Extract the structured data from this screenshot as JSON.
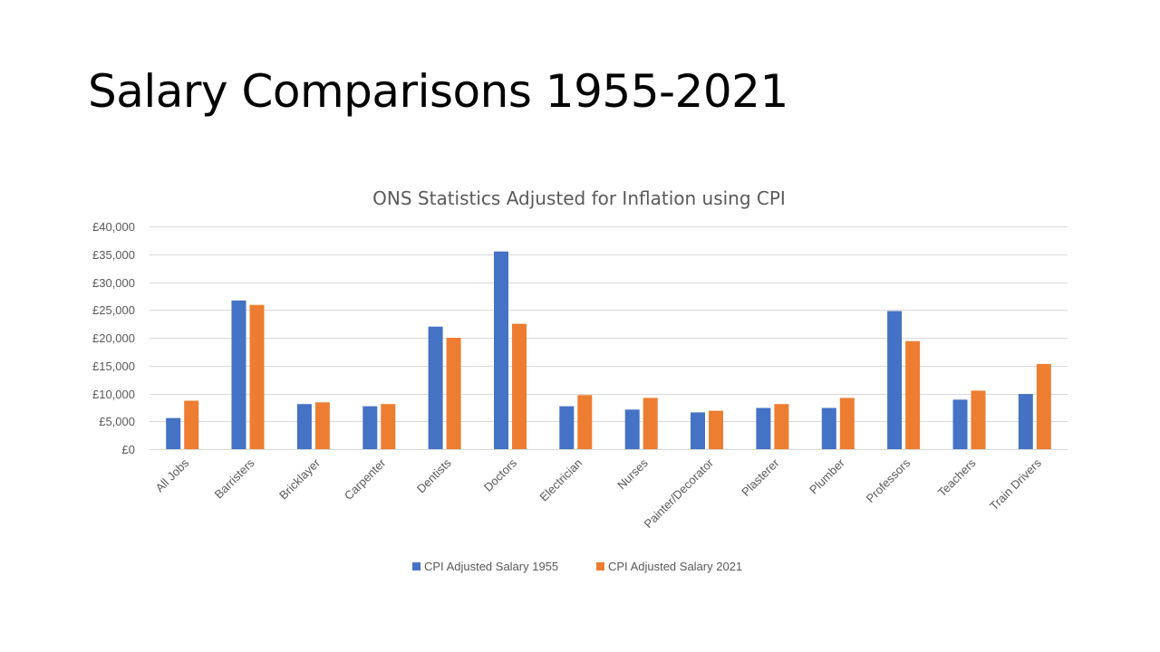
{
  "slide": {
    "title": "Salary Comparisons 1955-2021"
  },
  "colors": {
    "series1": "#4472C4",
    "series2": "#ED7D31",
    "grid": "#D9D9D9",
    "text": "#595959"
  },
  "chart_data": {
    "type": "bar",
    "title": "ONS Statistics Adjusted for Inflation using CPI",
    "xlabel": "",
    "ylabel": "",
    "ylim": [
      0,
      40000
    ],
    "yticks": [
      0,
      5000,
      10000,
      15000,
      20000,
      25000,
      30000,
      35000,
      40000
    ],
    "ytick_labels": [
      "£0",
      "£5,000",
      "£10,000",
      "£15,000",
      "£20,000",
      "£25,000",
      "£30,000",
      "£35,000",
      "£40,000"
    ],
    "grid": true,
    "legend_position": "bottom",
    "categories": [
      "All Jobs",
      "Barristers",
      "Bricklayer",
      "Carpenter",
      "Dentists",
      "Doctors",
      "Electrician",
      "Nurses",
      "Painter/Decorator",
      "Plasterer",
      "Plumber",
      "Professors",
      "Teachers",
      "Train Drivers"
    ],
    "series": [
      {
        "name": "CPI Adjusted Salary 1955",
        "values": [
          5600,
          26700,
          8100,
          7700,
          22000,
          35500,
          7700,
          7100,
          6600,
          7400,
          7400,
          24800,
          8900,
          9900
        ]
      },
      {
        "name": "CPI Adjusted Salary 2021",
        "values": [
          8700,
          25900,
          8400,
          8100,
          20000,
          22500,
          9700,
          9200,
          6900,
          8100,
          9200,
          19400,
          10500,
          15300
        ]
      }
    ]
  }
}
